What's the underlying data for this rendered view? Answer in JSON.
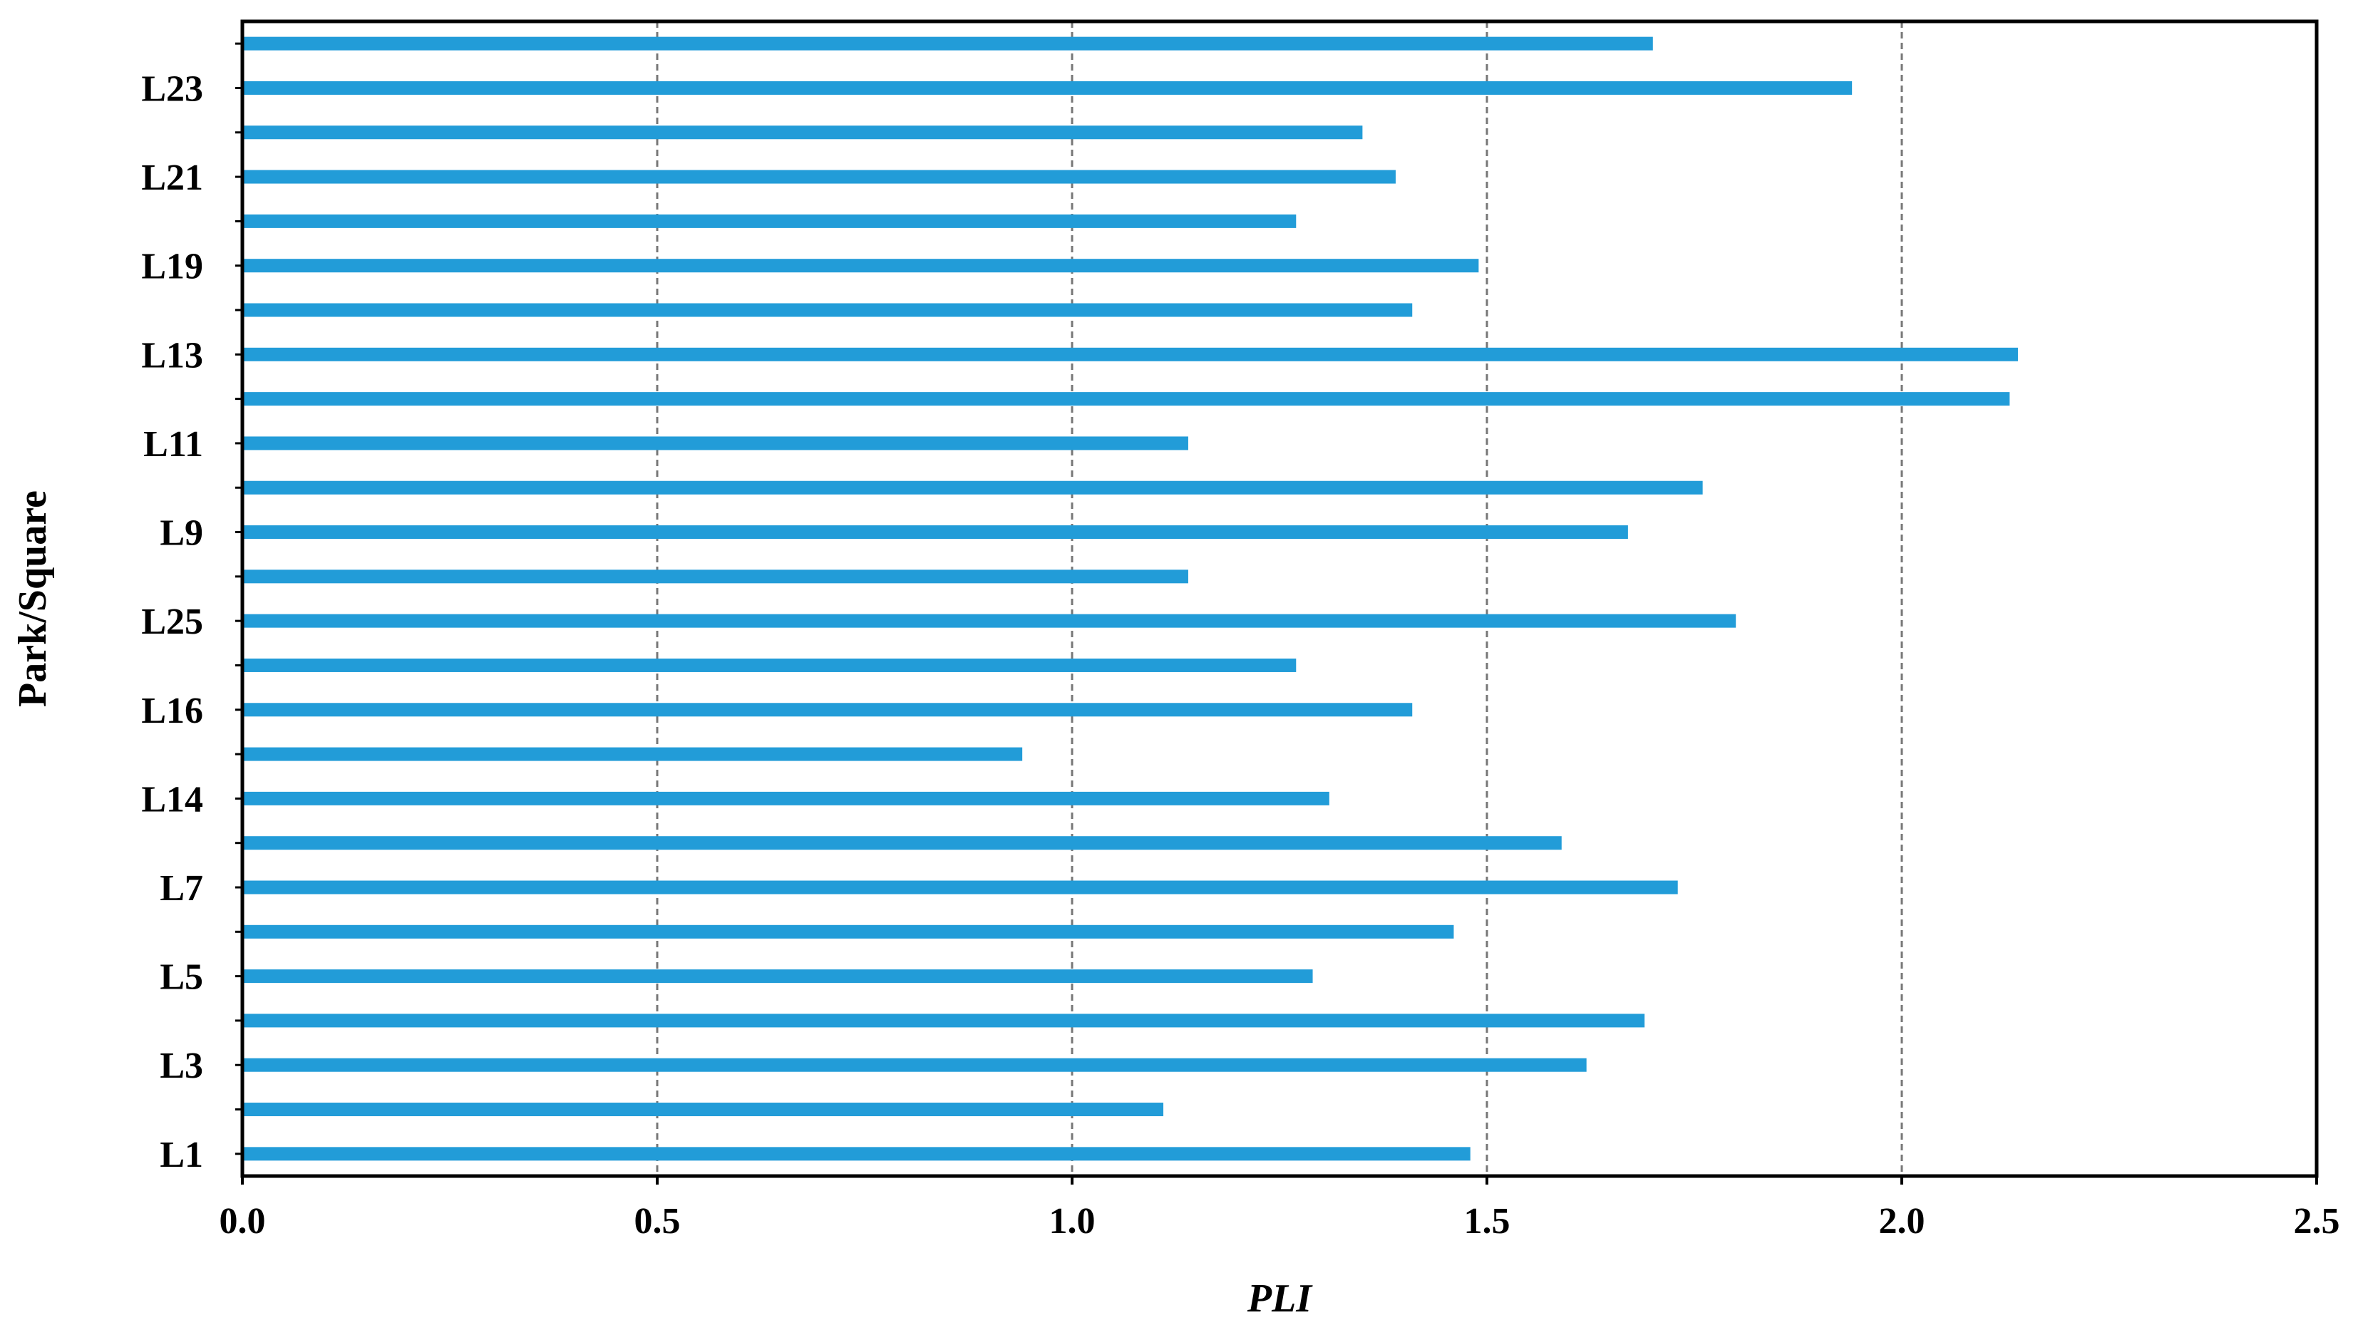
{
  "chart_data": {
    "type": "bar",
    "orientation": "horizontal",
    "xlabel": "PLI",
    "ylabel": "Park/Square",
    "xlim": [
      0,
      2.5
    ],
    "xticks": [
      "0.0",
      "0.5",
      "1.0",
      "1.5",
      "2.0",
      "2.5"
    ],
    "grid": "vertical dashed at 0.5, 1.0, 1.5, 2.0",
    "bar_color": "#229cd8",
    "categories": [
      "L1",
      "",
      "L3",
      "",
      "L5",
      "",
      "L7",
      "",
      "L14",
      "",
      "L16",
      "",
      "L25",
      "",
      "L9",
      "",
      "L11",
      "",
      "L13",
      "",
      "L19",
      "",
      "L21",
      "",
      "L23",
      ""
    ],
    "values": [
      1.48,
      1.11,
      1.62,
      1.69,
      1.29,
      1.46,
      1.73,
      1.59,
      1.31,
      0.94,
      1.41,
      1.27,
      1.8,
      1.14,
      1.67,
      1.76,
      1.14,
      2.13,
      2.14,
      1.41,
      1.49,
      1.27,
      1.39,
      1.35,
      1.94,
      1.7
    ]
  }
}
